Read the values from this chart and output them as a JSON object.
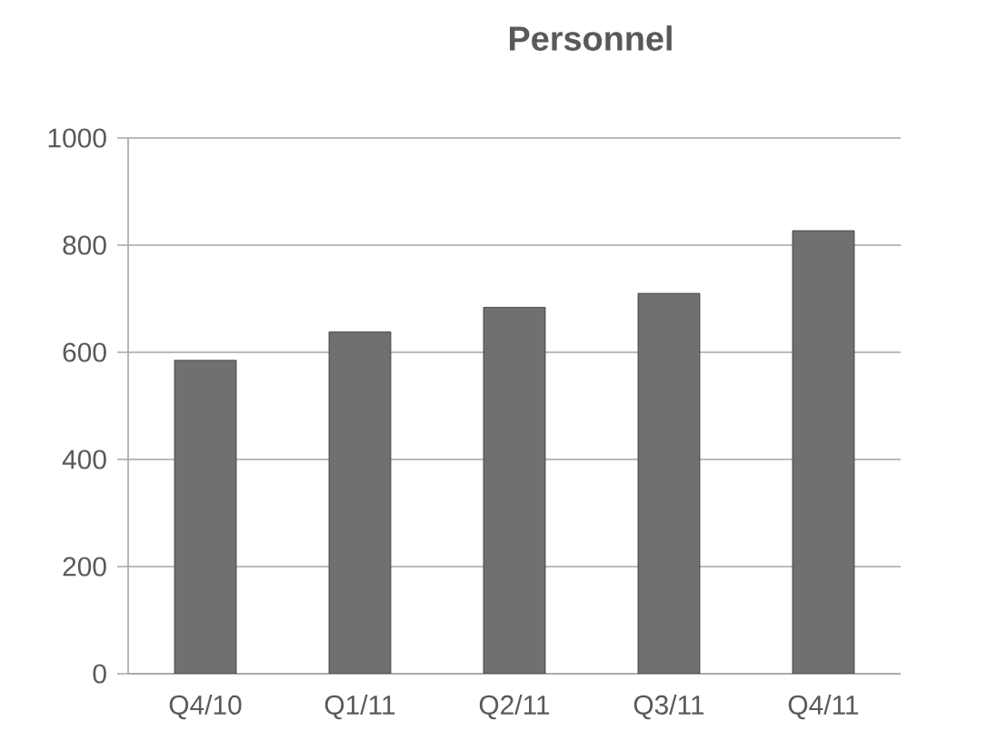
{
  "chart_data": {
    "type": "bar",
    "title": "Personnel",
    "categories": [
      "Q4/10",
      "Q1/11",
      "Q2/11",
      "Q3/11",
      "Q4/11"
    ],
    "values": [
      585,
      638,
      684,
      710,
      827
    ],
    "color": "#707070",
    "ylim": [
      0,
      1000
    ],
    "yticks": [
      0,
      200,
      400,
      600,
      800,
      1000
    ],
    "grid": "y"
  }
}
